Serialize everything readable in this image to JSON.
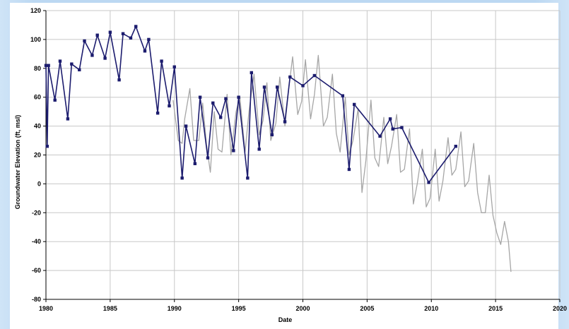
{
  "chart_data": {
    "type": "line",
    "xlabel": "Date",
    "ylabel": "Groundwater Elevation (ft, msl)",
    "xlim": [
      1980,
      2020
    ],
    "ylim": [
      -80,
      120
    ],
    "x_ticks": [
      "1980",
      "1985",
      "1990",
      "1995",
      "2000",
      "2005",
      "2010",
      "2015",
      "2020"
    ],
    "y_ticks": [
      "120",
      "100",
      "80",
      "60",
      "40",
      "20",
      "0",
      "-20",
      "-40",
      "-60",
      "-80"
    ],
    "grid": true,
    "series": [
      {
        "color": "#1c1c6e",
        "markers": true,
        "points": [
          [
            1980.0,
            82
          ],
          [
            1980.1,
            26
          ],
          [
            1980.2,
            82
          ],
          [
            1980.7,
            58
          ],
          [
            1981.1,
            85
          ],
          [
            1981.7,
            45
          ],
          [
            1982.0,
            83
          ],
          [
            1982.6,
            79
          ],
          [
            1983.0,
            99
          ],
          [
            1983.6,
            89
          ],
          [
            1984.0,
            103
          ],
          [
            1984.6,
            87
          ],
          [
            1985.0,
            105
          ],
          [
            1985.7,
            72
          ],
          [
            1986.0,
            104
          ],
          [
            1986.6,
            101
          ],
          [
            1987.0,
            109
          ],
          [
            1987.7,
            92
          ],
          [
            1988.0,
            100
          ],
          [
            1988.7,
            49
          ],
          [
            1989.0,
            85
          ],
          [
            1989.6,
            54
          ],
          [
            1990.0,
            81
          ],
          [
            1990.6,
            4
          ],
          [
            1990.9,
            40
          ],
          [
            1991.6,
            14
          ],
          [
            1992.0,
            60
          ],
          [
            1992.6,
            18
          ],
          [
            1993.0,
            56
          ],
          [
            1993.6,
            46
          ],
          [
            1994.0,
            59
          ],
          [
            1994.6,
            23
          ],
          [
            1995.0,
            60
          ],
          [
            1995.7,
            4
          ],
          [
            1996.0,
            77
          ],
          [
            1996.6,
            24
          ],
          [
            1997.0,
            67
          ],
          [
            1997.6,
            34
          ],
          [
            1998.0,
            67
          ],
          [
            1998.6,
            43
          ],
          [
            1999.0,
            74
          ],
          [
            2000.0,
            68
          ],
          [
            2000.9,
            75
          ],
          [
            2003.1,
            61
          ],
          [
            2003.6,
            10
          ],
          [
            2004.0,
            55
          ],
          [
            2006.0,
            33
          ],
          [
            2006.8,
            45
          ],
          [
            2007.0,
            38
          ],
          [
            2007.7,
            39
          ],
          [
            2009.8,
            1
          ],
          [
            2011.9,
            26
          ]
        ]
      },
      {
        "color": "#a6a6a6",
        "markers": false,
        "points": [
          [
            1989.9,
            58
          ],
          [
            1990.3,
            30
          ],
          [
            1990.6,
            28
          ],
          [
            1990.8,
            45
          ],
          [
            1991.2,
            66
          ],
          [
            1991.5,
            30
          ],
          [
            1991.9,
            30
          ],
          [
            1992.2,
            56
          ],
          [
            1992.5,
            27
          ],
          [
            1992.8,
            8
          ],
          [
            1993.1,
            50
          ],
          [
            1993.4,
            24
          ],
          [
            1993.7,
            22
          ],
          [
            1994.1,
            62
          ],
          [
            1994.4,
            20
          ],
          [
            1994.8,
            50
          ],
          [
            1995.1,
            60
          ],
          [
            1995.5,
            22
          ],
          [
            1995.8,
            50
          ],
          [
            1996.2,
            76
          ],
          [
            1996.6,
            34
          ],
          [
            1996.9,
            44
          ],
          [
            1997.2,
            70
          ],
          [
            1997.5,
            30
          ],
          [
            1997.9,
            42
          ],
          [
            1998.2,
            74
          ],
          [
            1998.6,
            40
          ],
          [
            1998.9,
            66
          ],
          [
            1999.2,
            88
          ],
          [
            1999.6,
            48
          ],
          [
            1999.9,
            57
          ],
          [
            2000.2,
            86
          ],
          [
            2000.6,
            45
          ],
          [
            2000.9,
            62
          ],
          [
            2001.2,
            89
          ],
          [
            2001.6,
            40
          ],
          [
            2001.9,
            46
          ],
          [
            2002.3,
            76
          ],
          [
            2002.6,
            35
          ],
          [
            2002.9,
            22
          ],
          [
            2003.3,
            60
          ],
          [
            2003.6,
            20
          ],
          [
            2003.9,
            30
          ],
          [
            2004.3,
            52
          ],
          [
            2004.6,
            -6
          ],
          [
            2004.9,
            16
          ],
          [
            2005.3,
            58
          ],
          [
            2005.6,
            18
          ],
          [
            2005.9,
            12
          ],
          [
            2006.3,
            46
          ],
          [
            2006.6,
            14
          ],
          [
            2006.9,
            26
          ],
          [
            2007.3,
            48
          ],
          [
            2007.6,
            8
          ],
          [
            2007.9,
            10
          ],
          [
            2008.3,
            38
          ],
          [
            2008.6,
            -14
          ],
          [
            2008.9,
            0
          ],
          [
            2009.3,
            24
          ],
          [
            2009.6,
            -16
          ],
          [
            2009.9,
            -10
          ],
          [
            2010.3,
            24
          ],
          [
            2010.6,
            -12
          ],
          [
            2010.9,
            2
          ],
          [
            2011.3,
            32
          ],
          [
            2011.6,
            6
          ],
          [
            2011.9,
            10
          ],
          [
            2012.3,
            36
          ],
          [
            2012.6,
            -2
          ],
          [
            2012.9,
            2
          ],
          [
            2013.3,
            28
          ],
          [
            2013.6,
            -6
          ],
          [
            2013.9,
            -20
          ],
          [
            2014.2,
            -20
          ],
          [
            2014.5,
            6
          ],
          [
            2014.8,
            -22
          ],
          [
            2015.1,
            -34
          ],
          [
            2015.4,
            -42
          ],
          [
            2015.7,
            -26
          ],
          [
            2016.0,
            -40
          ],
          [
            2016.2,
            -61
          ]
        ]
      }
    ]
  }
}
